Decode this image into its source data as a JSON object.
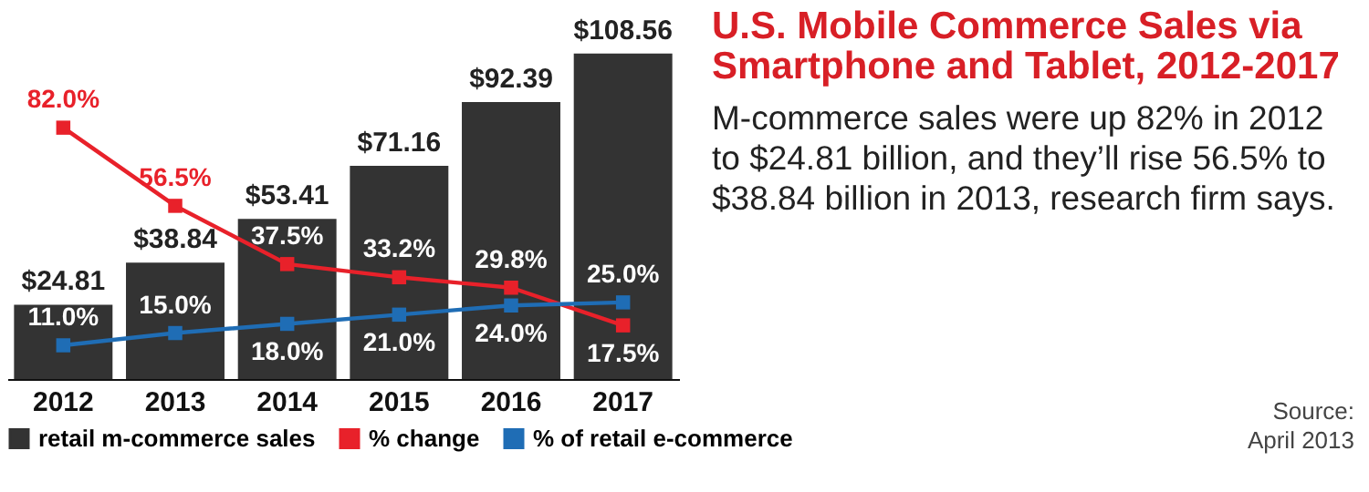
{
  "chart_data": {
    "type": "bar",
    "title": "U.S. Mobile Commerce Sales via Smartphone and Tablet, 2012-2017",
    "subtitle": "M-commerce sales were up 82% in 2012 to $24.81 billion, and they’ll rise 56.5% to $38.84 billion in 2013, research firm says.",
    "annotations": [
      "Source:",
      "April 2013"
    ],
    "categories": [
      "2012",
      "2013",
      "2014",
      "2015",
      "2016",
      "2017"
    ],
    "series": [
      {
        "name": "retail m-commerce sales",
        "color": "#333333",
        "values": [
          24.81,
          38.84,
          53.41,
          71.16,
          92.39,
          108.56
        ],
        "value_labels": [
          "$24.81",
          "$38.84",
          "$53.41",
          "$71.16",
          "$92.39",
          "$108.56"
        ]
      },
      {
        "name": "% change",
        "type": "line",
        "axis": "y2",
        "color": "#e8212a",
        "values": [
          82.0,
          56.5,
          37.5,
          33.2,
          29.8,
          17.5
        ],
        "value_labels": [
          "82.0%",
          "56.5%",
          "37.5%",
          "33.2%",
          "29.8%",
          "17.5%"
        ]
      },
      {
        "name": "% of retail e-commerce",
        "type": "line",
        "axis": "y2",
        "color": "#1f6db5",
        "values": [
          11.0,
          15.0,
          18.0,
          21.0,
          24.0,
          25.0
        ],
        "value_labels": [
          "11.0%",
          "15.0%",
          "18.0%",
          "21.0%",
          "24.0%",
          "25.0%"
        ]
      }
    ],
    "legend": "bottom",
    "marker": "square",
    "grid": false
  }
}
